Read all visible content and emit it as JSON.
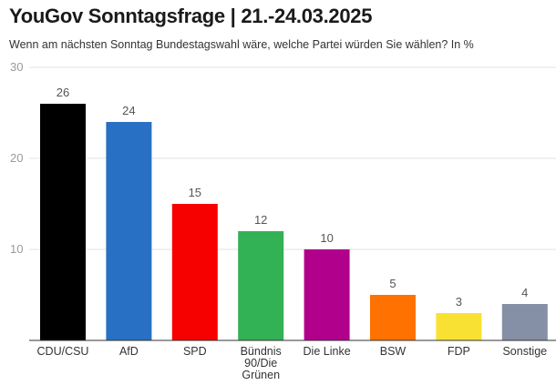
{
  "chart_data": {
    "type": "bar",
    "title": "YouGov Sonntagsfrage | 21.-24.03.2025",
    "subtitle": "Wenn am nächsten Sonntag Bundestagswahl wäre, welche Partei würden Sie wählen? In %",
    "categories": [
      "CDU/CSU",
      "AfD",
      "SPD",
      "Bündnis 90/Die Grünen",
      "Die Linke",
      "BSW",
      "FDP",
      "Sonstige"
    ],
    "category_lines": [
      [
        "CDU/CSU"
      ],
      [
        "AfD"
      ],
      [
        "SPD"
      ],
      [
        "Bündnis",
        "90/Die",
        "Grünen"
      ],
      [
        "Die Linke"
      ],
      [
        "BSW"
      ],
      [
        "FDP"
      ],
      [
        "Sonstige"
      ]
    ],
    "values": [
      26,
      24,
      15,
      12,
      10,
      5,
      3,
      4
    ],
    "colors": [
      "#000000",
      "#2770c4",
      "#f70000",
      "#33b155",
      "#b1008c",
      "#ff7100",
      "#f8e132",
      "#8590a6"
    ],
    "ylim": [
      0,
      30
    ],
    "yticks": [
      10,
      20,
      30
    ],
    "grid": true
  }
}
